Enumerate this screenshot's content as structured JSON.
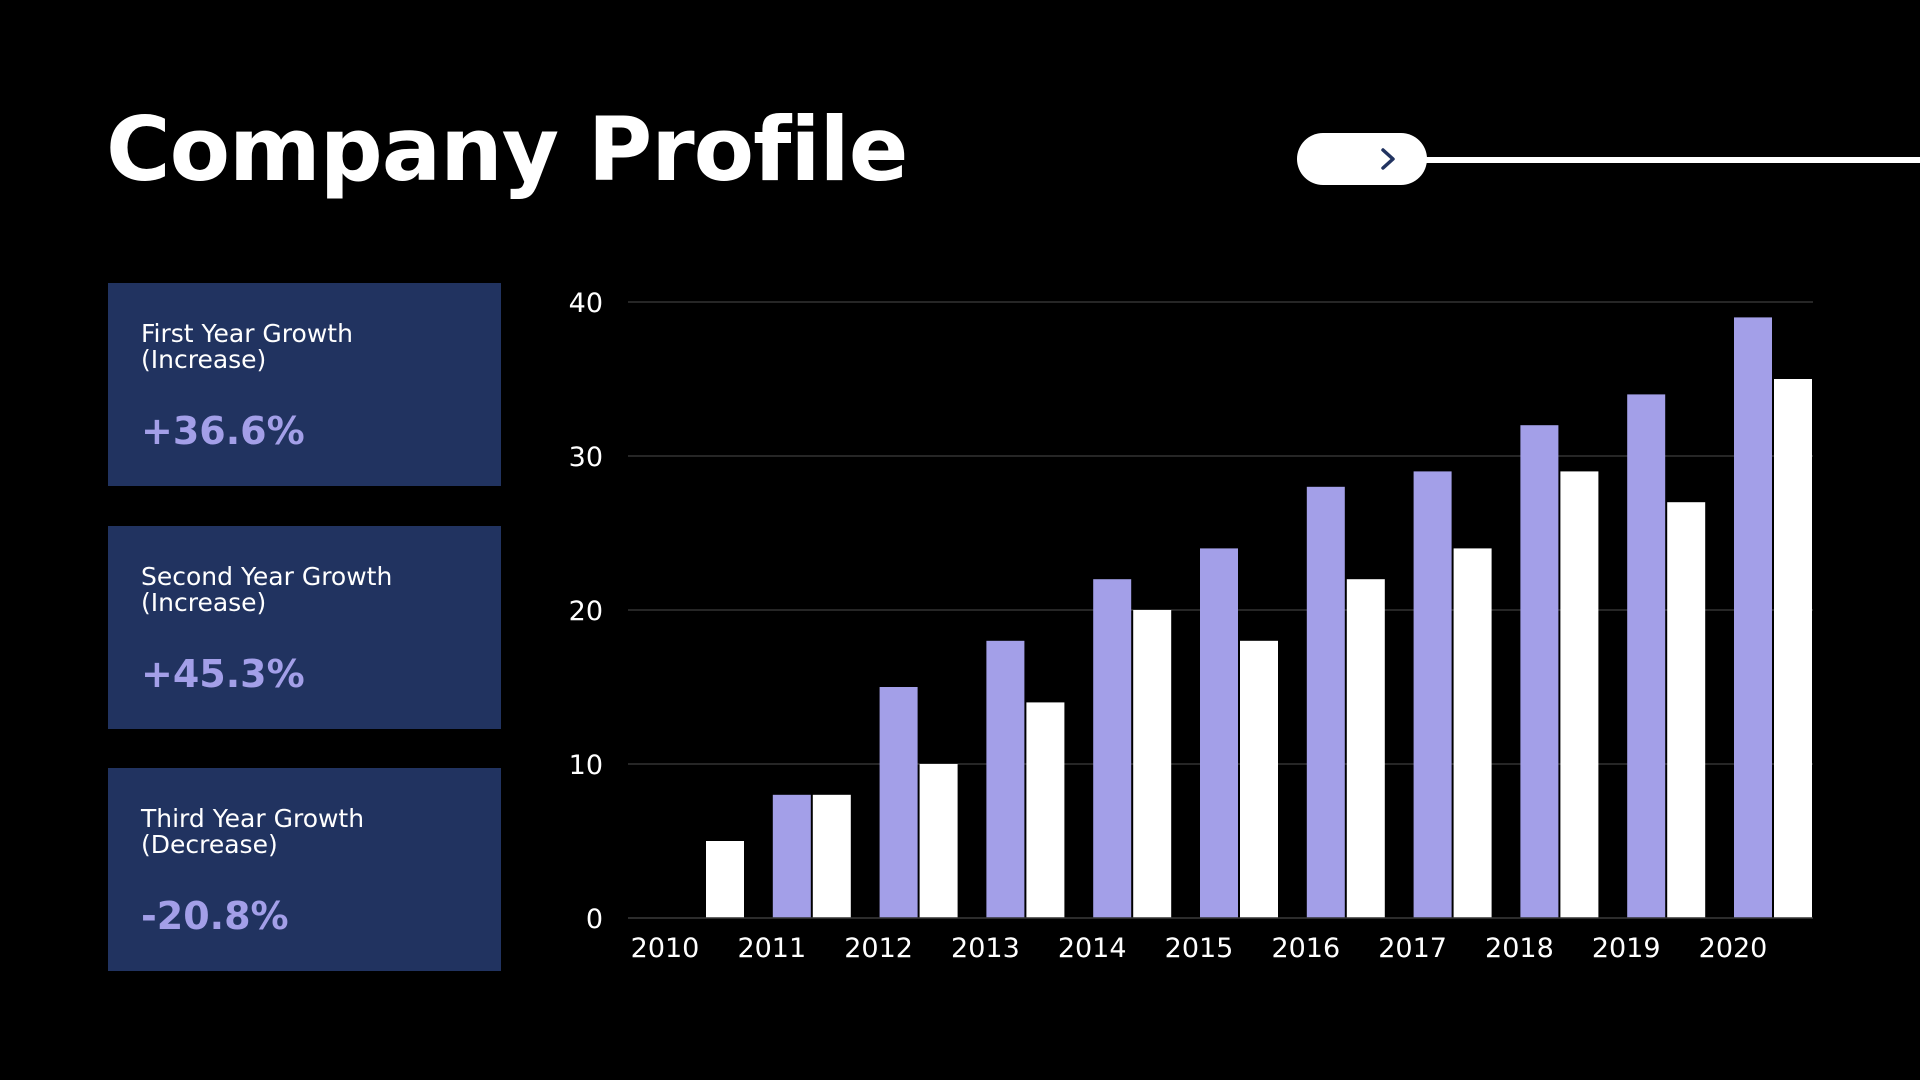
{
  "title": "Company Profile",
  "colors": {
    "background": "#000000",
    "card": "#213360",
    "accent": "#a39fe8",
    "series_a": "#a39fe8",
    "series_b": "#ffffff",
    "grid": "#333333"
  },
  "nav": {
    "icon": "chevron-right-icon"
  },
  "cards": [
    {
      "label": "First Year Growth (Increase)",
      "value": "+36.6%"
    },
    {
      "label": "Second Year Growth (Increase)",
      "value": "+45.3%"
    },
    {
      "label": "Third Year Growth (Decrease)",
      "value": "-20.8%"
    }
  ],
  "chart_data": {
    "type": "bar",
    "title": "",
    "xlabel": "",
    "ylabel": "",
    "categories": [
      "2010",
      "2011",
      "2012",
      "2013",
      "2014",
      "2015",
      "2016",
      "2017",
      "2018",
      "2019",
      "2020"
    ],
    "series": [
      {
        "values": [
          0,
          8,
          15,
          18,
          22,
          24,
          28,
          29,
          32,
          34,
          39
        ]
      },
      {
        "values": [
          5,
          8,
          10,
          14,
          20,
          18,
          22,
          24,
          29,
          27,
          35
        ]
      }
    ],
    "ylim": [
      0,
      40
    ],
    "yticks": [
      0,
      10,
      20,
      30,
      40
    ],
    "grid": true,
    "legend": "none"
  }
}
